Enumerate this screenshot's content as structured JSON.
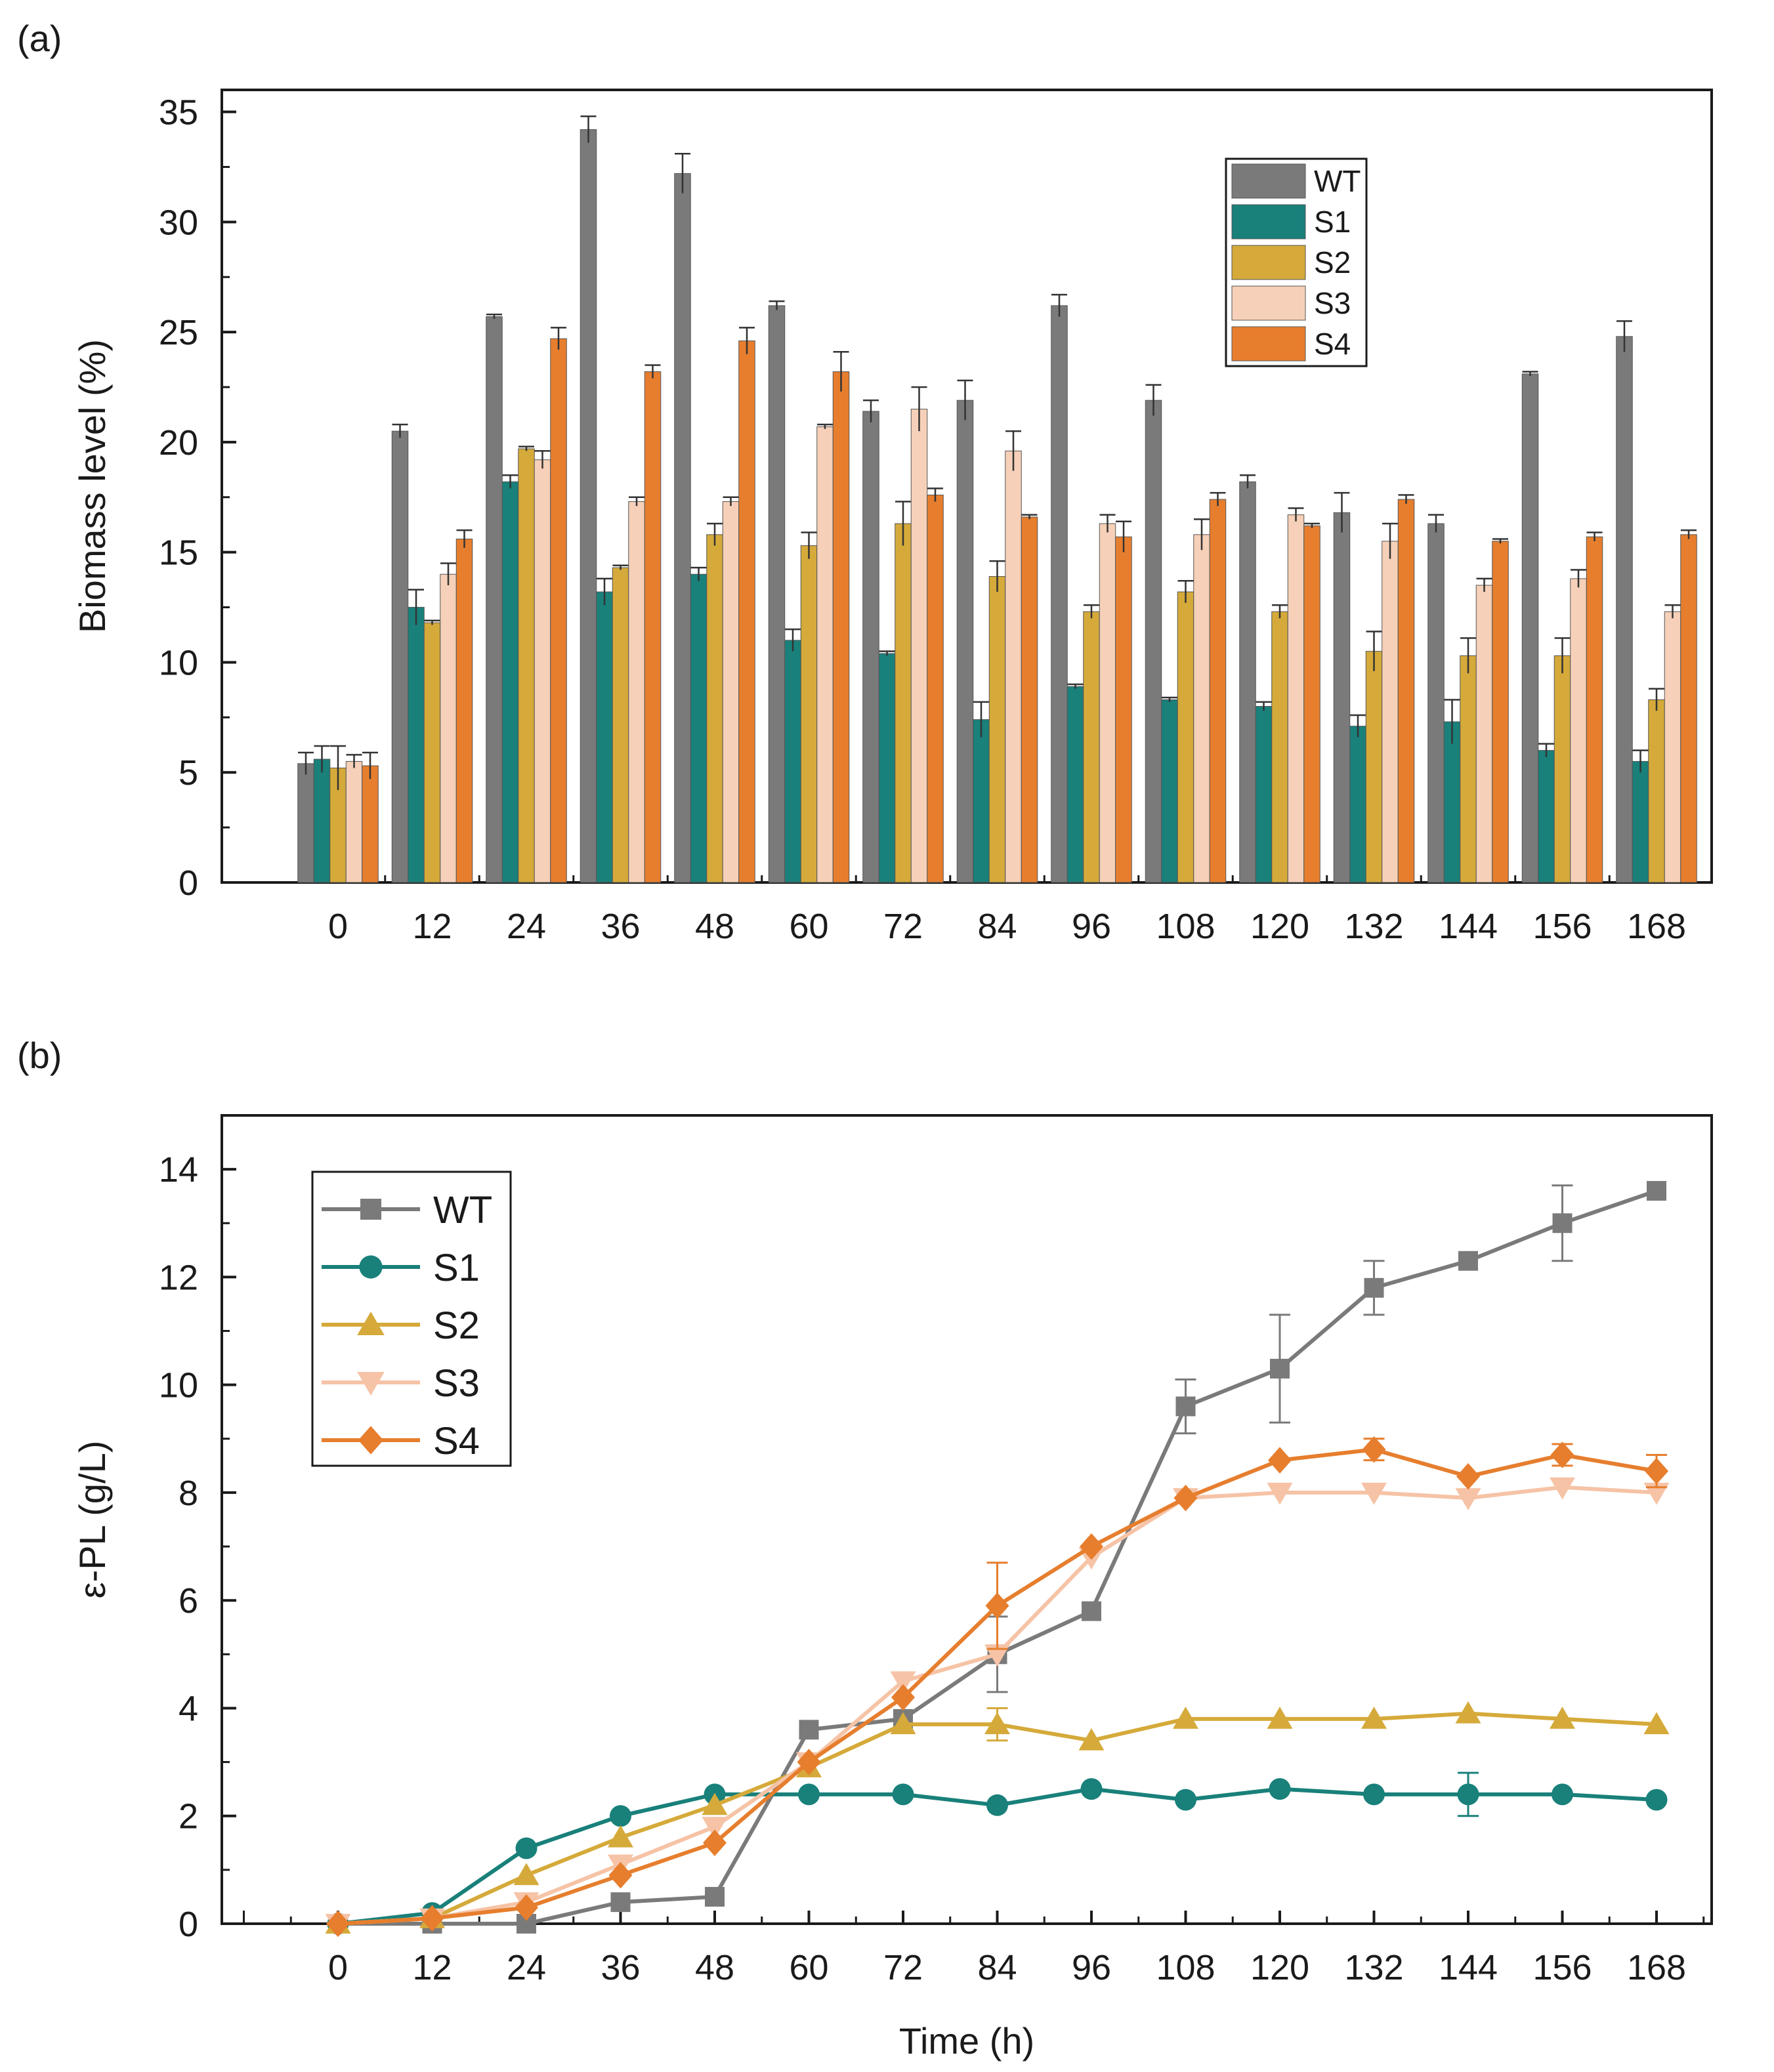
{
  "panels": {
    "a": "(a)",
    "b": "(b)"
  },
  "chart_data": [
    {
      "type": "bar",
      "title": "",
      "xlabel": "",
      "ylabel": "Biomass level (%)",
      "ylim": [
        0,
        36
      ],
      "yticks": [
        0,
        5,
        10,
        15,
        20,
        25,
        30,
        35
      ],
      "grid": false,
      "legend_position": "top-right",
      "categories": [
        "0",
        "12",
        "24",
        "36",
        "48",
        "60",
        "72",
        "84",
        "96",
        "108",
        "120",
        "132",
        "144",
        "156",
        "168"
      ],
      "series": [
        {
          "name": "WT",
          "color": "#7a7a7a",
          "values": [
            5.4,
            20.5,
            25.7,
            34.2,
            32.2,
            26.2,
            21.4,
            21.9,
            26.2,
            21.9,
            18.2,
            16.8,
            16.3,
            23.1,
            24.8
          ],
          "errors": [
            0.5,
            0.3,
            0.1,
            0.6,
            0.9,
            0.2,
            0.5,
            0.9,
            0.5,
            0.7,
            0.3,
            0.9,
            0.4,
            0.1,
            0.7
          ]
        },
        {
          "name": "S1",
          "color": "#19807a",
          "values": [
            5.6,
            12.5,
            18.2,
            13.2,
            14.0,
            11.0,
            10.4,
            7.4,
            8.9,
            8.3,
            8.0,
            7.1,
            7.3,
            6.0,
            5.5
          ],
          "errors": [
            0.6,
            0.8,
            0.3,
            0.6,
            0.3,
            0.5,
            0.1,
            0.8,
            0.1,
            0.1,
            0.2,
            0.5,
            1.0,
            0.3,
            0.5
          ]
        },
        {
          "name": "S2",
          "color": "#d5aa3a",
          "values": [
            5.2,
            11.8,
            19.7,
            14.3,
            15.8,
            15.3,
            16.3,
            13.9,
            12.3,
            13.2,
            12.3,
            10.5,
            10.3,
            10.3,
            8.3
          ],
          "errors": [
            1.0,
            0.1,
            0.1,
            0.1,
            0.5,
            0.6,
            1.0,
            0.7,
            0.3,
            0.5,
            0.3,
            0.9,
            0.8,
            0.8,
            0.5
          ]
        },
        {
          "name": "S3",
          "color": "#f6d0b8",
          "values": [
            5.5,
            14.0,
            19.2,
            17.3,
            17.3,
            20.7,
            21.5,
            19.6,
            16.3,
            15.8,
            16.7,
            15.5,
            13.5,
            13.8,
            12.3
          ],
          "errors": [
            0.3,
            0.5,
            0.4,
            0.2,
            0.2,
            0.1,
            1.0,
            0.9,
            0.4,
            0.7,
            0.3,
            0.8,
            0.3,
            0.4,
            0.3
          ]
        },
        {
          "name": "S4",
          "color": "#e67e2e",
          "values": [
            5.3,
            15.6,
            24.7,
            23.2,
            24.6,
            23.2,
            17.6,
            16.6,
            15.7,
            17.4,
            16.2,
            17.4,
            15.5,
            15.7,
            15.8
          ],
          "errors": [
            0.6,
            0.4,
            0.5,
            0.3,
            0.6,
            0.9,
            0.3,
            0.1,
            0.7,
            0.3,
            0.1,
            0.2,
            0.1,
            0.2,
            0.2
          ]
        }
      ]
    },
    {
      "type": "line",
      "title": "",
      "xlabel": "Time (h)",
      "ylabel": "ε-PL (g/L)",
      "ylim": [
        0,
        15
      ],
      "yticks": [
        0,
        2,
        4,
        6,
        8,
        10,
        12,
        14
      ],
      "grid": false,
      "legend_position": "top-left",
      "x": [
        0,
        12,
        24,
        36,
        48,
        60,
        72,
        84,
        96,
        108,
        120,
        132,
        144,
        156,
        168
      ],
      "series": [
        {
          "name": "WT",
          "marker": "square",
          "color": "#7a7a7a",
          "values": [
            0.0,
            0.0,
            0.0,
            0.4,
            0.5,
            3.6,
            3.8,
            5.0,
            5.8,
            9.6,
            10.3,
            11.8,
            12.3,
            13.0,
            13.6
          ],
          "errors": [
            0,
            0,
            0,
            0,
            0,
            0,
            0,
            0.7,
            0,
            0.5,
            1.0,
            0.5,
            0,
            0.7,
            0
          ]
        },
        {
          "name": "S1",
          "marker": "circle",
          "color": "#19807a",
          "values": [
            0.0,
            0.2,
            1.4,
            2.0,
            2.4,
            2.4,
            2.4,
            2.2,
            2.5,
            2.3,
            2.5,
            2.4,
            2.4,
            2.4,
            2.3
          ],
          "errors": [
            0,
            0,
            0,
            0,
            0,
            0,
            0,
            0,
            0,
            0,
            0,
            0,
            0.4,
            0,
            0
          ]
        },
        {
          "name": "S2",
          "marker": "triangle-up",
          "color": "#d5aa3a",
          "values": [
            0.0,
            0.1,
            0.9,
            1.6,
            2.2,
            2.9,
            3.7,
            3.7,
            3.4,
            3.8,
            3.8,
            3.8,
            3.9,
            3.8,
            3.7
          ],
          "errors": [
            0,
            0,
            0,
            0,
            0,
            0,
            0,
            0.3,
            0,
            0,
            0,
            0,
            0,
            0,
            0
          ]
        },
        {
          "name": "S3",
          "marker": "triangle-down",
          "color": "#f6c3a6",
          "values": [
            0.0,
            0.1,
            0.4,
            1.1,
            1.8,
            3.0,
            4.5,
            5.0,
            6.8,
            7.9,
            8.0,
            8.0,
            7.9,
            8.1,
            8.0
          ],
          "errors": [
            0,
            0,
            0,
            0,
            0,
            0,
            0,
            0,
            0,
            0,
            0,
            0,
            0,
            0,
            0
          ]
        },
        {
          "name": "S4",
          "marker": "diamond",
          "color": "#e67e2e",
          "values": [
            0.0,
            0.1,
            0.3,
            0.9,
            1.5,
            3.0,
            4.2,
            5.9,
            7.0,
            7.9,
            8.6,
            8.8,
            8.3,
            8.7,
            8.4
          ],
          "errors": [
            0,
            0,
            0,
            0,
            0,
            0,
            0,
            0.8,
            0,
            0,
            0,
            0.2,
            0,
            0.2,
            0.3
          ]
        }
      ]
    }
  ]
}
